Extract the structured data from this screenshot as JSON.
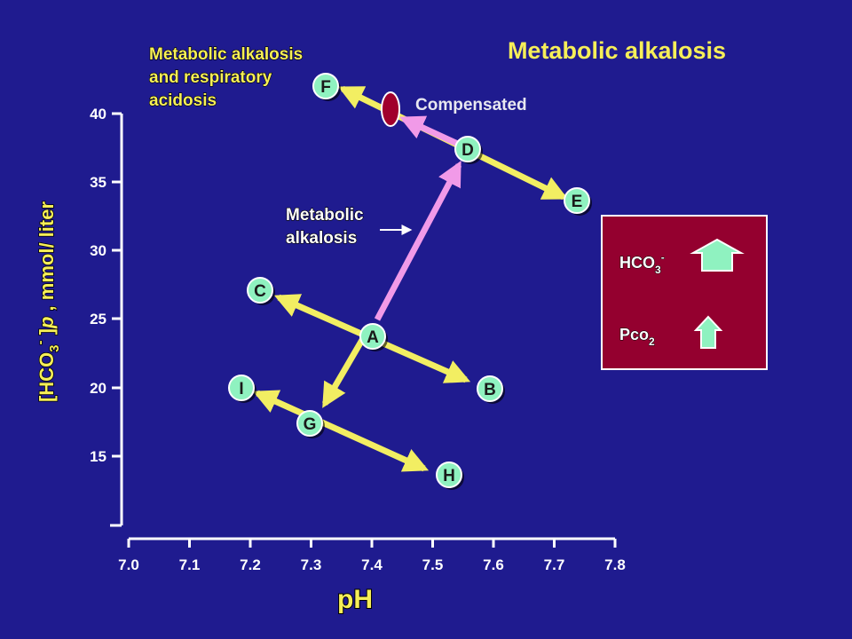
{
  "title": "Metabolic alkalosis",
  "x_axis": {
    "label": "pH",
    "ticks": [
      "7.0",
      "7.1",
      "7.2",
      "7.3",
      "7.4",
      "7.5",
      "7.6",
      "7.7",
      "7.8"
    ]
  },
  "y_axis": {
    "label_main": "[HCO",
    "label_sub": "3",
    "label_sup": "-",
    "label_rest": " ]",
    "label_symbol": "p",
    "label_units": " , mmol/ liter",
    "ticks": [
      "40",
      "35",
      "30",
      "25",
      "20",
      "15"
    ]
  },
  "points": {
    "A": "A",
    "B": "B",
    "C": "C",
    "D": "D",
    "E": "E",
    "F": "F",
    "G": "G",
    "H": "H",
    "I": "I"
  },
  "annotations": {
    "mixed_line1": "Metabolic alkalosis",
    "mixed_line2": "and respiratory",
    "mixed_line3": "acidosis",
    "compensated": "Compensated",
    "metabolic_line1": "Metabolic",
    "metabolic_line2": "alkalosis"
  },
  "legend_box": {
    "hco3_main": "HCO",
    "hco3_sub": "3",
    "hco3_sup": "-",
    "pco2_main": "Pco",
    "pco2_sub": "2"
  },
  "colors": {
    "background": "#1f1b8f",
    "title": "#f6ef58",
    "yellow_line": "#f2ee62",
    "pink_line": "#f19ae8",
    "point_fill": "#8ff2c0",
    "box_fill": "#94002f",
    "oval": "#a0002c",
    "arrow_fill": "#8ff2c0"
  }
}
